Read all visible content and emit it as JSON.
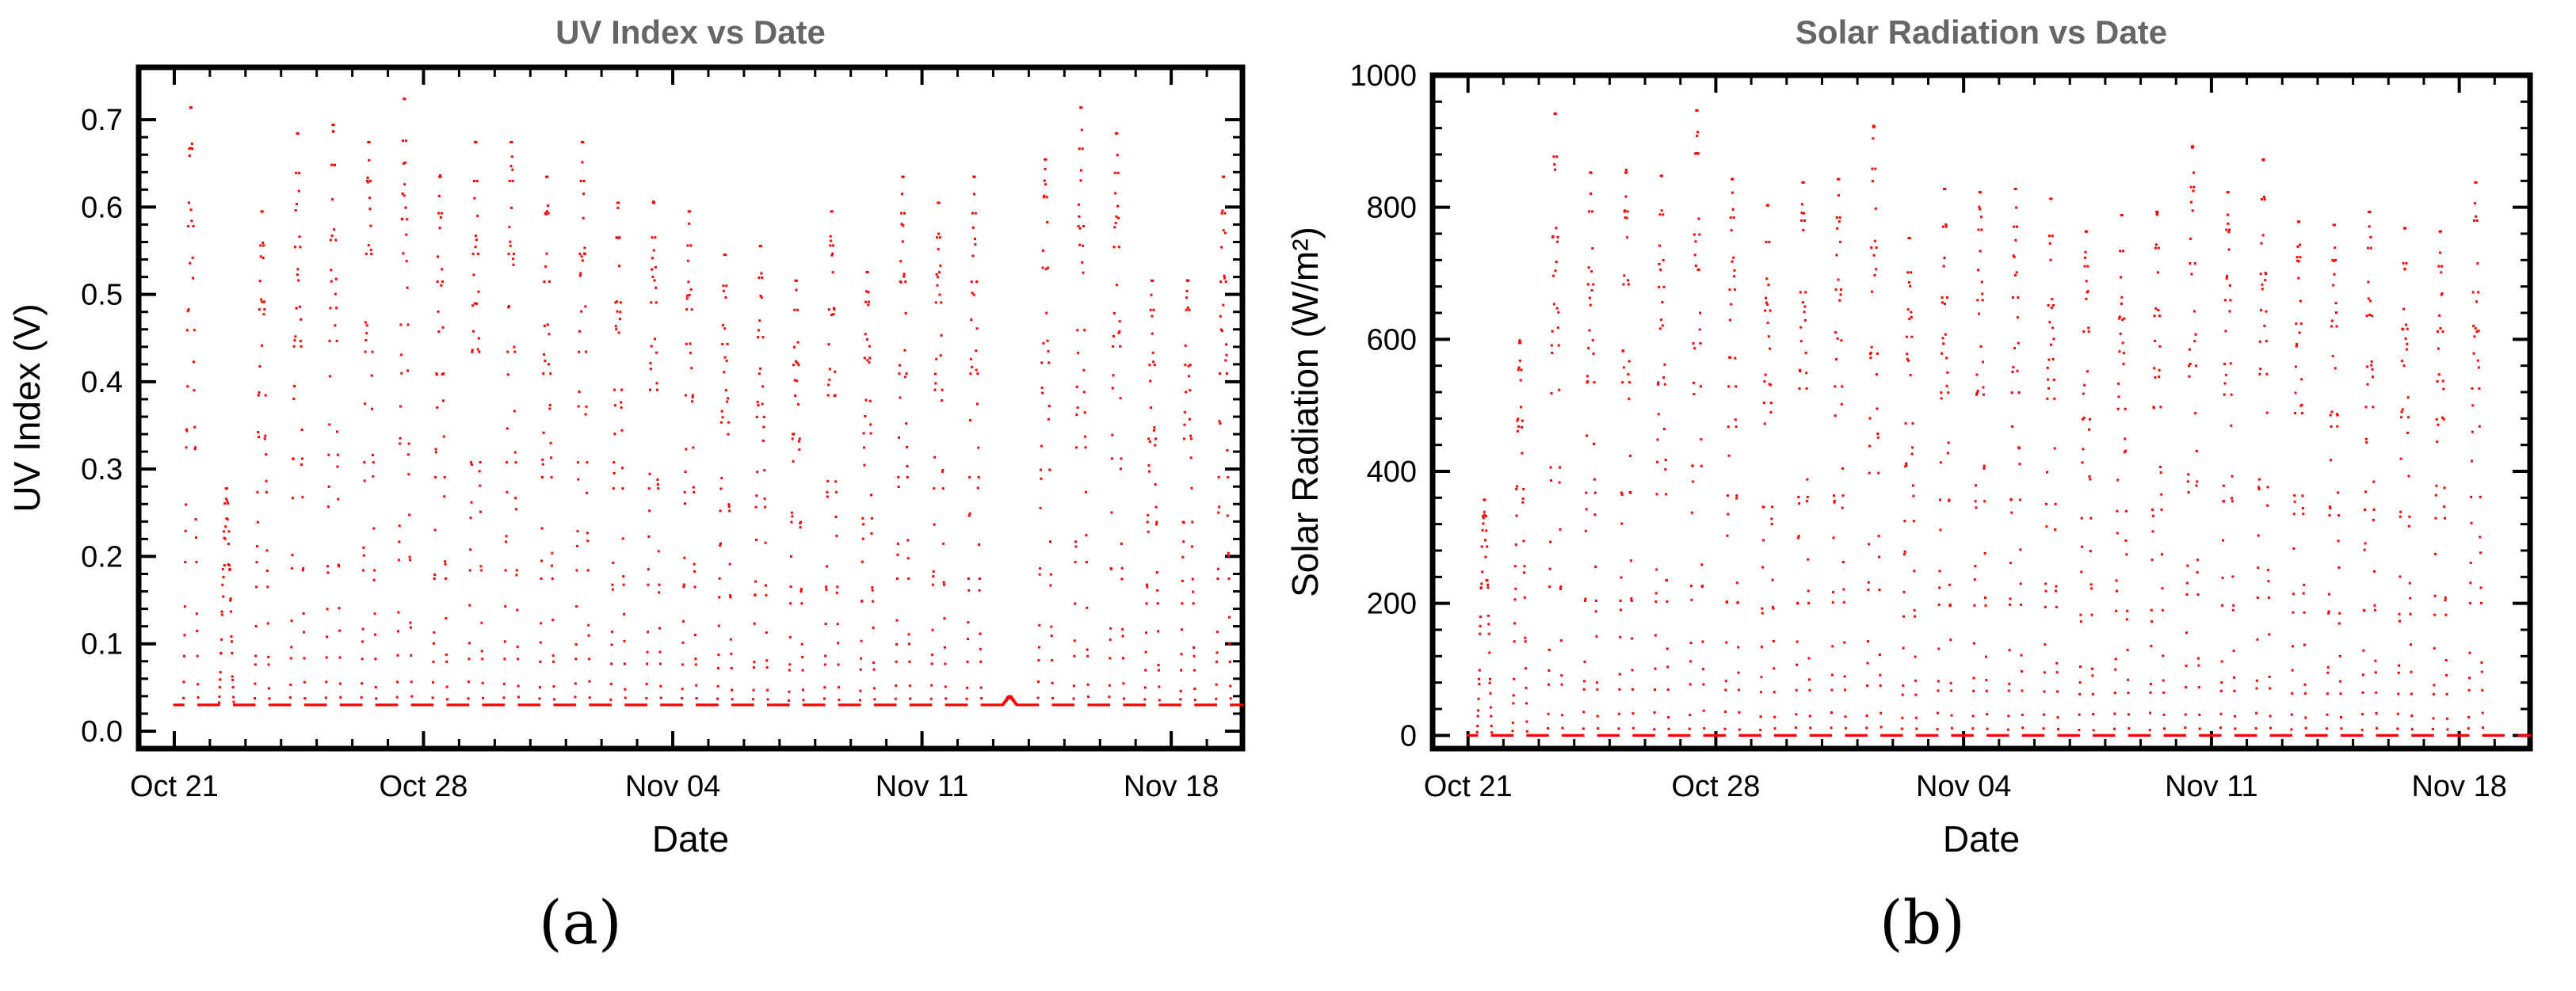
{
  "chart_data": [
    {
      "type": "scatter",
      "title": "UV Index vs Date",
      "xlabel": "Date",
      "ylabel": "UV Index (V)",
      "xlim": [
        "2019-10-20",
        "2019-11-20"
      ],
      "ylim": [
        -0.02,
        0.76
      ],
      "x_ticks": [
        {
          "date": "2019-10-21",
          "label": "Oct 21"
        },
        {
          "date": "2019-10-28",
          "label": "Oct 28"
        },
        {
          "date": "2019-11-04",
          "label": "Nov 04"
        },
        {
          "date": "2019-11-11",
          "label": "Nov 11"
        },
        {
          "date": "2019-11-18",
          "label": "Nov 18"
        }
      ],
      "y_ticks": [
        0.0,
        0.1,
        0.2,
        0.3,
        0.4,
        0.5,
        0.6,
        0.7
      ],
      "y_tick_labels": [
        "0.0",
        "0.1",
        "0.2",
        "0.3",
        "0.4",
        "0.5",
        "0.6",
        "0.7"
      ],
      "marker_color": "#ff0000",
      "grid": false,
      "legend": "none",
      "baseline": {
        "value": 0.03,
        "from": "2019-10-21",
        "to": "2019-11-19"
      },
      "daily_peaks": [
        {
          "date": "2019-10-21",
          "peak": 0.72
        },
        {
          "date": "2019-10-22",
          "peak": 0.28
        },
        {
          "date": "2019-10-23",
          "peak": 0.6
        },
        {
          "date": "2019-10-24",
          "peak": 0.69
        },
        {
          "date": "2019-10-25",
          "peak": 0.7
        },
        {
          "date": "2019-10-26",
          "peak": 0.68
        },
        {
          "date": "2019-10-27",
          "peak": 0.73
        },
        {
          "date": "2019-10-28",
          "peak": 0.64
        },
        {
          "date": "2019-10-29",
          "peak": 0.68
        },
        {
          "date": "2019-10-30",
          "peak": 0.68
        },
        {
          "date": "2019-10-31",
          "peak": 0.64
        },
        {
          "date": "2019-11-01",
          "peak": 0.68
        },
        {
          "date": "2019-11-02",
          "peak": 0.61
        },
        {
          "date": "2019-11-03",
          "peak": 0.61
        },
        {
          "date": "2019-11-04",
          "peak": 0.6
        },
        {
          "date": "2019-11-05",
          "peak": 0.55
        },
        {
          "date": "2019-11-06",
          "peak": 0.56
        },
        {
          "date": "2019-11-07",
          "peak": 0.52
        },
        {
          "date": "2019-11-08",
          "peak": 0.6
        },
        {
          "date": "2019-11-09",
          "peak": 0.53
        },
        {
          "date": "2019-11-10",
          "peak": 0.64
        },
        {
          "date": "2019-11-11",
          "peak": 0.61
        },
        {
          "date": "2019-11-12",
          "peak": 0.64
        },
        {
          "date": "2019-11-13",
          "peak": 0.04
        },
        {
          "date": "2019-11-14",
          "peak": 0.66
        },
        {
          "date": "2019-11-15",
          "peak": 0.72
        },
        {
          "date": "2019-11-16",
          "peak": 0.69
        },
        {
          "date": "2019-11-17",
          "peak": 0.52
        },
        {
          "date": "2019-11-18",
          "peak": 0.52
        },
        {
          "date": "2019-11-19",
          "peak": 0.64
        }
      ]
    },
    {
      "type": "scatter",
      "title": "Solar Radiation vs Date",
      "xlabel": "Date",
      "ylabel": "Solar Radiation (W/m²)",
      "xlim": [
        "2019-10-20",
        "2019-11-20"
      ],
      "ylim": [
        -20,
        1000
      ],
      "x_ticks": [
        {
          "date": "2019-10-21",
          "label": "Oct 21"
        },
        {
          "date": "2019-10-28",
          "label": "Oct 28"
        },
        {
          "date": "2019-11-04",
          "label": "Nov 04"
        },
        {
          "date": "2019-11-11",
          "label": "Nov 11"
        },
        {
          "date": "2019-11-18",
          "label": "Nov 18"
        }
      ],
      "y_ticks": [
        0,
        200,
        400,
        600,
        800,
        1000
      ],
      "y_tick_labels": [
        "0",
        "200",
        "400",
        "600",
        "800",
        "1000"
      ],
      "marker_color": "#ff0000",
      "grid": false,
      "legend": "none",
      "baseline": {
        "value": 0,
        "from": "2019-10-21",
        "to": "2019-11-19"
      },
      "daily_peaks": [
        {
          "date": "2019-10-21",
          "peak": 360
        },
        {
          "date": "2019-10-22",
          "peak": 600
        },
        {
          "date": "2019-10-23",
          "peak": 950
        },
        {
          "date": "2019-10-24",
          "peak": 860
        },
        {
          "date": "2019-10-25",
          "peak": 860
        },
        {
          "date": "2019-10-26",
          "peak": 855
        },
        {
          "date": "2019-10-27",
          "peak": 955
        },
        {
          "date": "2019-10-28",
          "peak": 850
        },
        {
          "date": "2019-10-29",
          "peak": 810
        },
        {
          "date": "2019-10-30",
          "peak": 845
        },
        {
          "date": "2019-10-31",
          "peak": 850
        },
        {
          "date": "2019-11-01",
          "peak": 930
        },
        {
          "date": "2019-11-02",
          "peak": 760
        },
        {
          "date": "2019-11-03",
          "peak": 835
        },
        {
          "date": "2019-11-04",
          "peak": 830
        },
        {
          "date": "2019-11-05",
          "peak": 835
        },
        {
          "date": "2019-11-06",
          "peak": 820
        },
        {
          "date": "2019-11-07",
          "peak": 770
        },
        {
          "date": "2019-11-08",
          "peak": 795
        },
        {
          "date": "2019-11-09",
          "peak": 800
        },
        {
          "date": "2019-11-10",
          "peak": 900
        },
        {
          "date": "2019-11-11",
          "peak": 830
        },
        {
          "date": "2019-11-12",
          "peak": 880
        },
        {
          "date": "2019-11-13",
          "peak": 785
        },
        {
          "date": "2019-11-14",
          "peak": 780
        },
        {
          "date": "2019-11-15",
          "peak": 800
        },
        {
          "date": "2019-11-16",
          "peak": 775
        },
        {
          "date": "2019-11-17",
          "peak": 770
        },
        {
          "date": "2019-11-18",
          "peak": 845
        }
      ]
    }
  ],
  "panel_labels": [
    "(a)",
    "(b)"
  ]
}
